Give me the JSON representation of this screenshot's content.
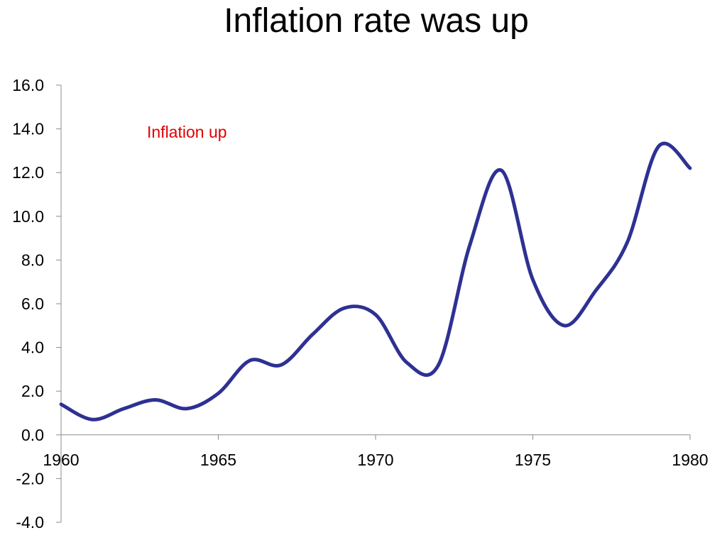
{
  "chart_data": {
    "type": "line",
    "title": "Inflation rate was up",
    "xlabel": "",
    "ylabel": "",
    "xlim": [
      1960,
      1980
    ],
    "ylim": [
      -4,
      16
    ],
    "x_ticks": [
      1960,
      1965,
      1970,
      1975,
      1980
    ],
    "y_ticks": [
      16,
      14,
      12,
      10,
      8,
      6,
      4,
      2,
      0,
      -2,
      -4
    ],
    "x_tick_labels": [
      "1960",
      "1965",
      "1970",
      "1975",
      "1980"
    ],
    "y_tick_labels": [
      "16.0",
      "14.0",
      "12.0",
      "10.0",
      "8.0",
      "6.0",
      "4.0",
      "2.0",
      "0.0",
      "-2.0",
      "-4.0"
    ],
    "grid": false,
    "annotation": "Inflation up",
    "annotation_color": "#e00000",
    "line_color": "#2e3192",
    "series": [
      {
        "x": [
          1960,
          1961,
          1962,
          1963,
          1964,
          1965,
          1966,
          1967,
          1968,
          1969,
          1970,
          1971,
          1972,
          1973,
          1974,
          1975,
          1976,
          1977,
          1978,
          1979,
          1980
        ],
        "values": [
          1.4,
          0.7,
          1.2,
          1.6,
          1.2,
          1.9,
          3.4,
          3.2,
          4.6,
          5.8,
          5.5,
          3.3,
          3.2,
          8.7,
          12.1,
          7.1,
          5.0,
          6.6,
          8.8,
          13.2,
          12.2
        ]
      }
    ]
  }
}
